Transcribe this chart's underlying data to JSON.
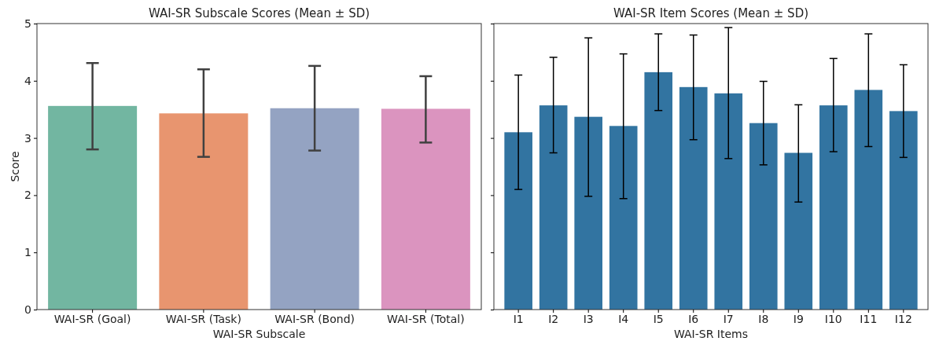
{
  "chart_data": [
    {
      "type": "bar",
      "title": "WAI-SR Subscale Scores (Mean ± SD)",
      "xlabel": "WAI-SR Subscale",
      "ylabel": "Score",
      "categories": [
        "WAI-SR (Goal)",
        "WAI-SR (Task)",
        "WAI-SR (Bond)",
        "WAI-SR (Total)"
      ],
      "values": [
        3.56,
        3.43,
        3.52,
        3.51
      ],
      "colors": [
        "#72b6a1",
        "#e8956f",
        "#94a3c2",
        "#db94bf"
      ],
      "errors": [
        [
          2.8,
          4.31
        ],
        [
          2.67,
          4.2
        ],
        [
          2.78,
          4.26
        ],
        [
          2.92,
          4.08
        ]
      ],
      "ylim": [
        0,
        5
      ],
      "yticks": [
        0,
        1,
        2,
        3,
        4,
        5
      ],
      "grid": false
    },
    {
      "type": "bar",
      "title": "WAI-SR Item Scores (Mean ± SD)",
      "xlabel": "WAI-SR Items",
      "categories": [
        "I1",
        "I2",
        "I3",
        "I4",
        "I5",
        "I6",
        "I7",
        "I8",
        "I9",
        "I10",
        "I11",
        "I12"
      ],
      "values": [
        3.1,
        3.57,
        3.37,
        3.21,
        4.15,
        3.89,
        3.78,
        3.26,
        2.74,
        3.57,
        3.84,
        3.47
      ],
      "color": "#3274a1",
      "errors": [
        [
          2.1,
          4.1
        ],
        [
          2.74,
          4.41
        ],
        [
          1.98,
          4.75
        ],
        [
          1.94,
          4.47
        ],
        [
          3.48,
          4.82
        ],
        [
          2.97,
          4.8
        ],
        [
          2.64,
          4.93
        ],
        [
          2.53,
          3.99
        ],
        [
          1.88,
          3.58
        ],
        [
          2.76,
          4.39
        ],
        [
          2.85,
          4.82
        ],
        [
          2.66,
          4.28
        ]
      ],
      "ylim": [
        0,
        5
      ],
      "yticks": [
        0,
        1,
        2,
        3,
        4,
        5
      ],
      "tick_labels": "x",
      "grid": false
    }
  ]
}
